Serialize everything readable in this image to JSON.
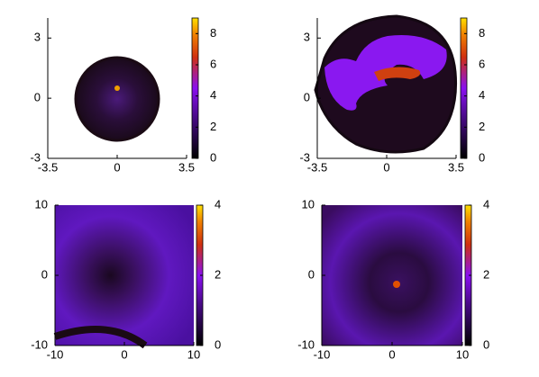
{
  "chart_data": [
    {
      "type": "heatmap",
      "xlim": [
        -3.5,
        3.5
      ],
      "ylim": [
        -3,
        4
      ],
      "xticks": [
        -3.5,
        0,
        3.5
      ],
      "yticks": [
        -3,
        0,
        3
      ],
      "clim": [
        0,
        9
      ],
      "cticks": [
        0,
        2,
        4,
        6,
        8
      ]
    },
    {
      "type": "heatmap",
      "xlim": [
        -3.5,
        3.5
      ],
      "ylim": [
        -3,
        4
      ],
      "xticks": [
        -3.5,
        0,
        3.5
      ],
      "yticks": [
        -3,
        0,
        3
      ],
      "clim": [
        0,
        9
      ],
      "cticks": [
        0,
        2,
        4,
        6,
        8
      ]
    },
    {
      "type": "heatmap",
      "xlim": [
        -10,
        10
      ],
      "ylim": [
        -10,
        10
      ],
      "xticks": [
        -10,
        0,
        10
      ],
      "yticks": [
        -10,
        0,
        10
      ],
      "clim": [
        0,
        4
      ],
      "cticks": [
        0,
        2,
        4
      ]
    },
    {
      "type": "heatmap",
      "xlim": [
        -10,
        10
      ],
      "ylim": [
        -10,
        10
      ],
      "xticks": [
        -10,
        0,
        10
      ],
      "yticks": [
        -10,
        0,
        10
      ],
      "clim": [
        0,
        4
      ],
      "cticks": [
        0,
        2,
        4
      ]
    }
  ]
}
